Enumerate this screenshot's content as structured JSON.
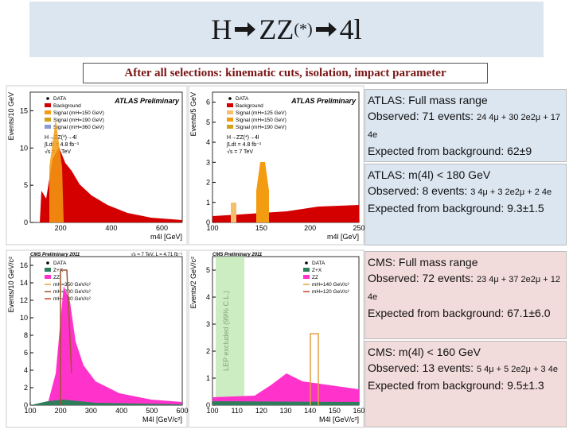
{
  "title": {
    "particle": "H",
    "intermediate": "ZZ",
    "intermediate_sup": "(*)",
    "final": "4l"
  },
  "subtitle": "After all selections: kinematic cuts, isolation, impact parameter",
  "panels": [
    {
      "experiment": "ATLAS Preliminary",
      "info": [
        "H→ZZ(*)→4l",
        "∫Ldt = 4.8 fb⁻¹",
        "√s = 7 TeV"
      ],
      "legend": [
        {
          "label": "DATA",
          "marker": "point",
          "color": "#000000"
        },
        {
          "label": "Background",
          "marker": "fill",
          "color": "#d40000"
        },
        {
          "label": "Signal (mH=150 GeV)",
          "marker": "fill",
          "color": "#f39c12"
        },
        {
          "label": "Signal (mH=190 GeV)",
          "marker": "fill",
          "color": "#d4a017"
        },
        {
          "label": "Signal (mH=360 GeV)",
          "marker": "fill",
          "color": "#8a9bd4"
        }
      ],
      "y_label": "Events/10 GeV",
      "x_label": "m4l [GeV]",
      "xticks": [
        200,
        400,
        600
      ],
      "yticks": [
        0,
        5,
        10,
        15
      ]
    },
    {
      "experiment": "ATLAS Preliminary",
      "info": [
        "H→ZZ(*)→4l",
        "∫Ldt = 4.8 fb⁻¹",
        "√s = 7 TeV"
      ],
      "legend": [
        {
          "label": "DATA",
          "marker": "point",
          "color": "#000000"
        },
        {
          "label": "Background",
          "marker": "fill",
          "color": "#d40000"
        },
        {
          "label": "Signal (mH=125 GeV)",
          "marker": "fill",
          "color": "#f5c06a"
        },
        {
          "label": "Signal (mH=150 GeV)",
          "marker": "fill",
          "color": "#f39c12"
        },
        {
          "label": "Signal (mH=190 GeV)",
          "marker": "fill",
          "color": "#d4a017"
        }
      ],
      "y_label": "Events/5 GeV",
      "x_label": "m4l [GeV]",
      "xticks": [
        100,
        150,
        200,
        250
      ],
      "yticks": [
        0,
        1,
        2,
        3,
        4,
        5,
        6
      ]
    },
    {
      "experiment": "CMS Preliminary 2011",
      "info": [
        "√s = 7 TeV, L = 4.71 fb⁻¹"
      ],
      "legend": [
        {
          "label": "DATA",
          "marker": "point",
          "color": "#000000"
        },
        {
          "label": "Z+X",
          "marker": "fill",
          "color": "#2e7d5b"
        },
        {
          "label": "ZZ",
          "marker": "fill",
          "color": "#ff33cc"
        },
        {
          "label": "mH=350 GeV/c²",
          "marker": "line",
          "color": "#e0a040"
        },
        {
          "label": "mH=200 GeV/c²",
          "marker": "line",
          "color": "#a0522d"
        },
        {
          "label": "mH=140 GeV/c²",
          "marker": "line",
          "color": "#d04020"
        }
      ],
      "y_label": "Events/10 GeV/c²",
      "x_label": "M4l [GeV/c²]",
      "xticks": [
        100,
        200,
        300,
        400,
        500,
        600
      ],
      "yticks": [
        0,
        2,
        4,
        6,
        8,
        10,
        12,
        14,
        16
      ]
    },
    {
      "experiment": "CMS Preliminary 2011",
      "info": [
        "LEP excluded (99% C.L.)"
      ],
      "legend": [
        {
          "label": "DATA",
          "marker": "point",
          "color": "#000000"
        },
        {
          "label": "Z+X",
          "marker": "fill",
          "color": "#2e7d5b"
        },
        {
          "label": "ZZ",
          "marker": "fill",
          "color": "#ff33cc"
        },
        {
          "label": "mH=140 GeV/c²",
          "marker": "line",
          "color": "#e0a040"
        },
        {
          "label": "mH=120 GeV/c²",
          "marker": "line",
          "color": "#d04020"
        }
      ],
      "y_label": "Events/2 GeV/c²",
      "x_label": "M4l [GeV/c²]",
      "xticks": [
        100,
        110,
        120,
        130,
        140,
        150,
        160
      ],
      "yticks": [
        0,
        1,
        2,
        3,
        4,
        5
      ]
    }
  ],
  "summaries": [
    {
      "heading": "ATLAS: Full mass range",
      "observed": "Observed: 71 events:",
      "detail": "24 4μ + 30 2e2μ + 17 4e",
      "expected": "Expected from background: 62±9"
    },
    {
      "heading": "ATLAS: m(4l) < 180 GeV",
      "observed": "Observed: 8 events:",
      "detail": "3 4μ + 3 2e2μ + 2 4e",
      "expected": "Expected from background: 9.3±1.5"
    },
    {
      "heading": "CMS: Full mass range",
      "observed": "Observed: 72 events:",
      "detail": "23 4μ + 37 2e2μ + 12 4e",
      "expected": "Expected from background: 67.1±6.0"
    },
    {
      "heading": "CMS: m(4l) < 160 GeV",
      "observed": "Observed: 13 events:",
      "detail": "5 4μ + 5 2e2μ + 3 4e",
      "expected": "Expected from background: 9.5±1.3"
    }
  ]
}
